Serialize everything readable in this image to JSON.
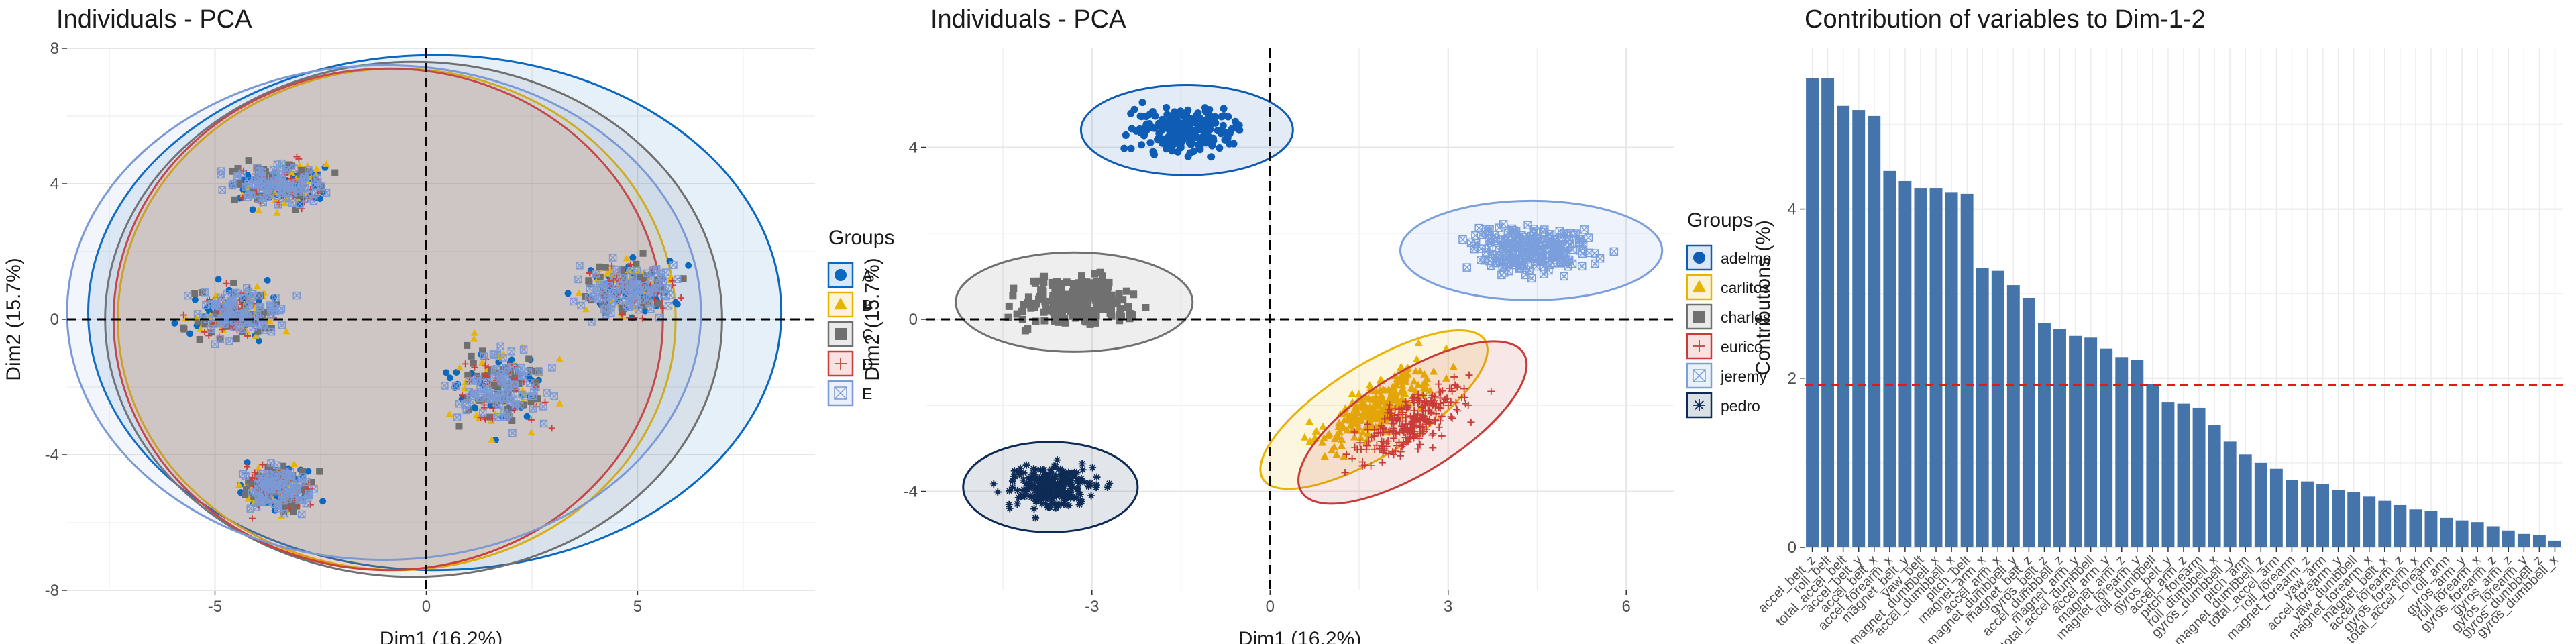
{
  "chart_data": [
    {
      "type": "scatter",
      "title": "Individuals - PCA",
      "xlabel": "Dim1 (16.2%)",
      "ylabel": "Dim2 (15.7%)",
      "xlim": [
        -8.5,
        9.2
      ],
      "ylim": [
        -8,
        8
      ],
      "xticks": [
        -5,
        0,
        5
      ],
      "yticks": [
        -8,
        -4,
        0,
        4,
        8
      ],
      "xtick_labels": [
        "-5",
        "0",
        "5"
      ],
      "ytick_labels": [
        "-8",
        "-4",
        "0",
        "4",
        "8"
      ],
      "grid": true,
      "legend_title": "Groups",
      "legend_position": "right",
      "clusters": [
        {
          "cx": -3.5,
          "cy": 4.0,
          "rx": 1.9,
          "ry": 1.1
        },
        {
          "cx": -4.5,
          "cy": 0.2,
          "rx": 1.9,
          "ry": 1.3
        },
        {
          "cx": -3.5,
          "cy": -5.0,
          "rx": 1.5,
          "ry": 1.2
        },
        {
          "cx": 1.8,
          "cy": -2.0,
          "rx": 2.0,
          "ry": 2.1
        },
        {
          "cx": 4.8,
          "cy": 0.9,
          "rx": 2.0,
          "ry": 1.4
        }
      ],
      "series": [
        {
          "name": "A",
          "marker": "circle",
          "color": "#0868c2",
          "ellipse": {
            "cx": 0.2,
            "cy": 0.2,
            "rx": 8.2,
            "ry": 7.6
          }
        },
        {
          "name": "B",
          "marker": "triangle",
          "color": "#e8b400",
          "ellipse": {
            "cx": -0.7,
            "cy": 0.0,
            "rx": 6.6,
            "ry": 7.4
          }
        },
        {
          "name": "C",
          "marker": "square",
          "color": "#707070",
          "ellipse": {
            "cx": -0.3,
            "cy": 0.0,
            "rx": 7.3,
            "ry": 7.6
          }
        },
        {
          "name": "D",
          "marker": "plus",
          "color": "#cd3f3a",
          "ellipse": {
            "cx": -0.9,
            "cy": 0.0,
            "rx": 6.5,
            "ry": 7.4
          }
        },
        {
          "name": "E",
          "marker": "boxcross",
          "color": "#7b99d5",
          "ellipse": {
            "cx": -1.0,
            "cy": 0.2,
            "rx": 7.5,
            "ry": 7.3
          }
        }
      ]
    },
    {
      "type": "scatter",
      "title": "Individuals - PCA",
      "xlabel": "Dim1 (16.2%)",
      "ylabel": "Dim2 (15.7%)",
      "xlim": [
        -5.8,
        6.8
      ],
      "ylim": [
        -6.3,
        6.3
      ],
      "xticks": [
        -3,
        0,
        3,
        6
      ],
      "yticks": [
        -4,
        0,
        4
      ],
      "xtick_labels": [
        "-3",
        "0",
        "3",
        "6"
      ],
      "ytick_labels": [
        "-4",
        "0",
        "4"
      ],
      "grid": true,
      "legend_title": "Groups",
      "legend_position": "right",
      "series": [
        {
          "name": "adelmo",
          "marker": "circle",
          "color": "#0f5cb5",
          "cluster": {
            "cx": -1.4,
            "cy": 4.4,
            "rx": 1.7,
            "ry": 1.0
          }
        },
        {
          "name": "carlitos",
          "marker": "triangle",
          "color": "#e8b400",
          "cluster": {
            "cx": 1.75,
            "cy": -2.1,
            "rx": 2.1,
            "ry": 1.0,
            "angle": -32
          }
        },
        {
          "name": "charles",
          "marker": "square",
          "color": "#707070",
          "cluster": {
            "cx": -3.3,
            "cy": 0.4,
            "rx": 1.9,
            "ry": 1.1
          }
        },
        {
          "name": "eurico",
          "marker": "plus",
          "color": "#c93b39",
          "cluster": {
            "cx": 2.4,
            "cy": -2.4,
            "rx": 2.1,
            "ry": 1.1,
            "angle": -32
          }
        },
        {
          "name": "jeremy",
          "marker": "boxcross",
          "color": "#7b9fdc",
          "cluster": {
            "cx": 4.4,
            "cy": 1.6,
            "rx": 2.1,
            "ry": 1.1
          }
        },
        {
          "name": "pedro",
          "marker": "asterisk",
          "color": "#0d2b55",
          "cluster": {
            "cx": -3.7,
            "cy": -3.9,
            "rx": 1.4,
            "ry": 1.0
          }
        }
      ]
    },
    {
      "type": "bar",
      "title": "Contribution of variables to Dim-1-2",
      "ylabel": "Contributions (%)",
      "xlabel": "",
      "ylim": [
        0,
        5.9
      ],
      "yticks": [
        0,
        2,
        4
      ],
      "ytick_labels": [
        "0",
        "2",
        "4"
      ],
      "reference_line": 1.92,
      "grid": true,
      "bar_color": "#4574ab",
      "categories": [
        "accel_belt_z",
        "roll_belt",
        "total_accel_belt",
        "accel_belt_y",
        "accel_belt_x",
        "accel_forearm_x",
        "magnet_belt_y",
        "yaw_belt",
        "magnet_dumbbell_x",
        "accel_dumbbell_x",
        "pitch_belt",
        "magnet_arm_x",
        "accel_arm_x",
        "magnet_dumbbell_y",
        "magnet_belt_z",
        "gyros_belt_z",
        "accel_dumbbell_z",
        "magnet_arm_y",
        "total_accel_dumbbell",
        "accel_arm_y",
        "magnet_arm_z",
        "magnet_forearm_y",
        "roll_dumbbell",
        "gyros_belt_y",
        "accel_arm_z",
        "pitch_forearm",
        "roll_dumbbell_x",
        "gyros_dumbbell_y",
        "pitch_arm",
        "magnet_dumbbell_z",
        "total_accel_arm",
        "roll_forearm",
        "magnet_forearm_z",
        "yaw_arm",
        "accel_forearm_y",
        "yaw_dumbbell",
        "magnet_forearm_x",
        "magnet_belt_x",
        "accel_forearm_z",
        "gyros_forearm_x",
        "total_accel_forearm",
        "roll_arm",
        "gyros_arm_y",
        "roll_forearm_x",
        "gyros_forearm_z",
        "gyros_arm_z",
        "gyros_forearm_y",
        "gyros_dumbbell_z",
        "gyros_dumbbell_x"
      ],
      "values": [
        5.55,
        5.55,
        5.22,
        5.17,
        5.1,
        4.45,
        4.33,
        4.25,
        4.25,
        4.2,
        4.18,
        3.3,
        3.27,
        3.1,
        2.95,
        2.65,
        2.58,
        2.5,
        2.48,
        2.35,
        2.25,
        2.22,
        1.93,
        1.72,
        1.7,
        1.65,
        1.45,
        1.25,
        1.1,
        1.0,
        0.93,
        0.8,
        0.78,
        0.75,
        0.68,
        0.65,
        0.6,
        0.55,
        0.5,
        0.45,
        0.43,
        0.35,
        0.32,
        0.3,
        0.25,
        0.2,
        0.16,
        0.15,
        0.08
      ]
    }
  ]
}
